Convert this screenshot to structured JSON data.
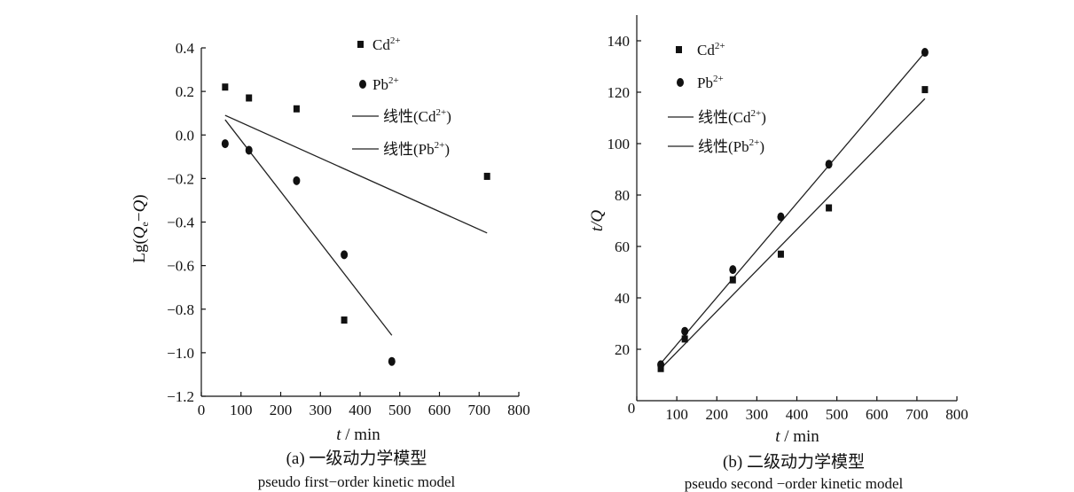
{
  "chart_data": [
    {
      "type": "scatter",
      "panel": "a",
      "title": "(a) 一级动力学模型",
      "subtitle": "pseudo first−order kinetic model",
      "xlabel": "t / min",
      "ylabel": "Lg(Qe−Q)",
      "xlim": [
        0,
        800
      ],
      "ylim": [
        -1.2,
        0.4
      ],
      "xticks": [
        0,
        100,
        200,
        300,
        400,
        500,
        600,
        700,
        800
      ],
      "yticks": [
        -1.2,
        -1.0,
        -0.8,
        -0.6,
        -0.4,
        -0.2,
        0.0,
        0.2,
        0.4
      ],
      "ytick_labels": [
        "−1.2",
        "−1.0",
        "−0.8",
        "−0.6",
        "−0.4",
        "−0.2",
        "0.0",
        "0.2",
        "0.4"
      ],
      "legend_position": "top-right",
      "series": [
        {
          "name": "Cd²⁺",
          "marker": "square",
          "x": [
            60,
            120,
            240,
            360,
            720
          ],
          "y": [
            0.22,
            0.17,
            0.12,
            -0.85,
            -0.19
          ]
        },
        {
          "name": "Pb²⁺",
          "marker": "circle",
          "x": [
            60,
            120,
            240,
            360,
            480
          ],
          "y": [
            -0.04,
            -0.07,
            -0.21,
            -0.55,
            -1.04
          ]
        }
      ],
      "fits": [
        {
          "name": "线性(Cd²⁺)",
          "x": [
            60,
            720
          ],
          "y": [
            0.09,
            -0.45
          ]
        },
        {
          "name": "线性(Pb²⁺)",
          "x": [
            60,
            480
          ],
          "y": [
            0.07,
            -0.92
          ]
        }
      ]
    },
    {
      "type": "scatter",
      "panel": "b",
      "title": "(b) 二级动力学模型",
      "subtitle": "pseudo second −order kinetic model",
      "xlabel": "t / min",
      "ylabel": "t/Q",
      "xlim": [
        0,
        800
      ],
      "ylim": [
        0,
        150
      ],
      "xticks": [
        0,
        100,
        200,
        300,
        400,
        500,
        600,
        700,
        800
      ],
      "yticks": [
        20,
        40,
        60,
        80,
        100,
        120,
        140
      ],
      "legend_position": "top-left",
      "series": [
        {
          "name": "Cd²⁺",
          "marker": "square",
          "x": [
            60,
            120,
            240,
            360,
            480,
            720
          ],
          "y": [
            12.5,
            24,
            47,
            57,
            75,
            121
          ]
        },
        {
          "name": "Pb²⁺",
          "marker": "circle",
          "x": [
            60,
            120,
            240,
            360,
            480,
            720
          ],
          "y": [
            14,
            27,
            51,
            71.5,
            92,
            135.5
          ]
        }
      ],
      "fits": [
        {
          "name": "线性(Cd²⁺)",
          "x": [
            60,
            720
          ],
          "y": [
            12.5,
            117.5
          ]
        },
        {
          "name": "线性(Pb²⁺)",
          "x": [
            60,
            720
          ],
          "y": [
            14.5,
            135.5
          ]
        }
      ]
    }
  ]
}
